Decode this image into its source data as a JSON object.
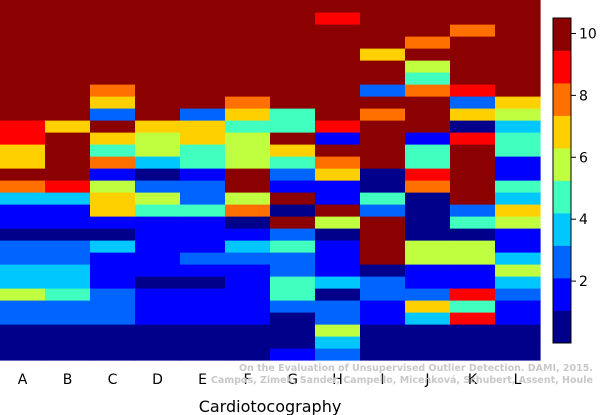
{
  "chart_data": {
    "type": "heatmap",
    "xlabel": "Cardiotocography",
    "columns": [
      "A",
      "B",
      "C",
      "D",
      "E",
      "F",
      "G",
      "H",
      "I",
      "J",
      "K",
      "L"
    ],
    "rows": 30,
    "color_scale": {
      "min": 0,
      "max": 10.5,
      "ticks": [
        2,
        4,
        6,
        8,
        10
      ],
      "colors": [
        "#00008b",
        "#0000ff",
        "#0064ff",
        "#00c8ff",
        "#40ffbf",
        "#bfff40",
        "#ffd000",
        "#ff7000",
        "#ff0000",
        "#8b0000"
      ]
    },
    "values": [
      [
        0.5,
        0.5,
        0.5,
        0.5,
        0.5,
        0.5,
        1.5,
        3.0,
        0.5,
        0.5,
        0.5,
        0.5
      ],
      [
        0.5,
        0.5,
        0.5,
        0.5,
        0.5,
        0.5,
        0.5,
        3.5,
        0.5,
        0.5,
        0.5,
        0.5
      ],
      [
        0.5,
        0.5,
        0.5,
        0.5,
        0.5,
        0.5,
        1.0,
        5.5,
        0.5,
        0.5,
        0.5,
        0.5
      ],
      [
        2.5,
        2.5,
        2.5,
        1.5,
        1.5,
        1.5,
        1.0,
        2.5,
        1.5,
        3.5,
        9.0,
        1.5
      ],
      [
        2.5,
        2.5,
        2.5,
        1.5,
        1.5,
        1.5,
        2.5,
        2.5,
        1.5,
        7.0,
        4.5,
        1.5
      ],
      [
        6.0,
        4.5,
        2.5,
        1.5,
        1.5,
        2.0,
        4.5,
        0.5,
        2.5,
        2.5,
        9.0,
        2.5
      ],
      [
        3.5,
        3.5,
        2.0,
        1.0,
        1.0,
        2.0,
        4.5,
        3.5,
        2.5,
        1.5,
        2.0,
        3.5
      ],
      [
        3.5,
        3.5,
        1.5,
        1.5,
        1.5,
        1.5,
        2.5,
        2.0,
        0.5,
        1.5,
        1.5,
        5.5
      ],
      [
        2.5,
        2.5,
        1.5,
        1.5,
        2.5,
        3.0,
        2.5,
        1.5,
        10.0,
        5.5,
        5.5,
        3.5
      ],
      [
        3.0,
        3.0,
        3.5,
        2.0,
        1.5,
        3.5,
        4.5,
        1.5,
        10.0,
        5.5,
        5.5,
        1.5
      ],
      [
        1.0,
        1.0,
        1.0,
        1.5,
        1.5,
        1.5,
        2.5,
        1.0,
        10.0,
        0.5,
        0.5,
        1.5
      ],
      [
        1.5,
        1.5,
        2.0,
        1.5,
        1.5,
        0.5,
        10.0,
        6.0,
        10.0,
        0.5,
        4.5,
        6.0
      ],
      [
        2.0,
        2.0,
        7.0,
        5.0,
        4.5,
        7.5,
        0.5,
        10.0,
        2.5,
        0.5,
        2.5,
        6.5
      ],
      [
        3.5,
        3.5,
        7.0,
        5.5,
        2.5,
        6.0,
        10.0,
        2.0,
        4.5,
        0.5,
        10.0,
        3.5
      ],
      [
        7.5,
        9.0,
        6.0,
        2.5,
        2.5,
        10.0,
        2.0,
        2.0,
        0.5,
        7.5,
        10.0,
        4.5
      ],
      [
        10.0,
        10.0,
        1.5,
        1.0,
        1.5,
        10.0,
        2.5,
        7.0,
        0.5,
        9.0,
        10.0,
        1.5
      ],
      [
        6.5,
        10.0,
        7.5,
        3.5,
        4.5,
        6.0,
        4.5,
        7.5,
        10.0,
        5.0,
        10.0,
        1.5
      ],
      [
        6.5,
        10.0,
        4.5,
        6.0,
        5.0,
        6.0,
        6.5,
        10.0,
        10.0,
        5.0,
        10.0,
        4.5
      ],
      [
        9.0,
        10.0,
        6.5,
        6.0,
        7.0,
        6.0,
        10.0,
        2.0,
        10.0,
        2.0,
        9.0,
        4.5
      ],
      [
        9.0,
        7.0,
        10.0,
        7.0,
        7.0,
        4.5,
        4.5,
        9.0,
        10.0,
        10.0,
        1.0,
        3.5
      ],
      [
        10.0,
        10.0,
        2.5,
        10.0,
        2.5,
        7.0,
        4.5,
        10.0,
        7.5,
        10.0,
        6.5,
        6.0
      ],
      [
        10.0,
        10.0,
        6.5,
        10.0,
        10.0,
        7.5,
        10.0,
        10.0,
        10.0,
        10.0,
        3.0,
        7.0
      ],
      [
        10.0,
        10.0,
        7.5,
        10.0,
        10.0,
        10.0,
        10.0,
        10.0,
        2.5,
        7.5,
        9.0,
        10.0
      ],
      [
        9.5,
        9.5,
        10.0,
        10.0,
        10.0,
        10.0,
        10.0,
        10.0,
        9.5,
        4.5,
        10.0,
        10.0
      ],
      [
        10.0,
        10.0,
        10.0,
        10.0,
        10.0,
        10.0,
        10.0,
        10.0,
        10.0,
        5.5,
        10.0,
        10.0
      ],
      [
        10.0,
        10.0,
        10.0,
        10.0,
        10.0,
        10.0,
        10.0,
        10.0,
        6.5,
        10.0,
        10.0,
        10.0
      ],
      [
        10.0,
        10.0,
        10.0,
        10.0,
        10.0,
        10.0,
        10.0,
        10.0,
        10.0,
        8.0,
        10.0,
        10.0
      ],
      [
        10.0,
        10.0,
        10.0,
        10.0,
        10.0,
        10.0,
        10.0,
        10.0,
        10.0,
        10.0,
        8.0,
        10.0
      ],
      [
        10.0,
        10.0,
        10.0,
        10.0,
        10.0,
        10.0,
        10.0,
        9.0,
        10.0,
        10.0,
        10.0,
        10.0
      ],
      [
        10.0,
        10.0,
        10.0,
        10.0,
        10.0,
        10.0,
        10.0,
        10.0,
        10.0,
        10.0,
        9.5,
        10.0
      ]
    ]
  },
  "credit": {
    "line1": "On the Evaluation of Unsupervised Outlier Detection. DAMI, 2015.",
    "line2": "Campos, Zimek, Sander, Campello, Micenková, Schubert, Assent, Houle"
  }
}
